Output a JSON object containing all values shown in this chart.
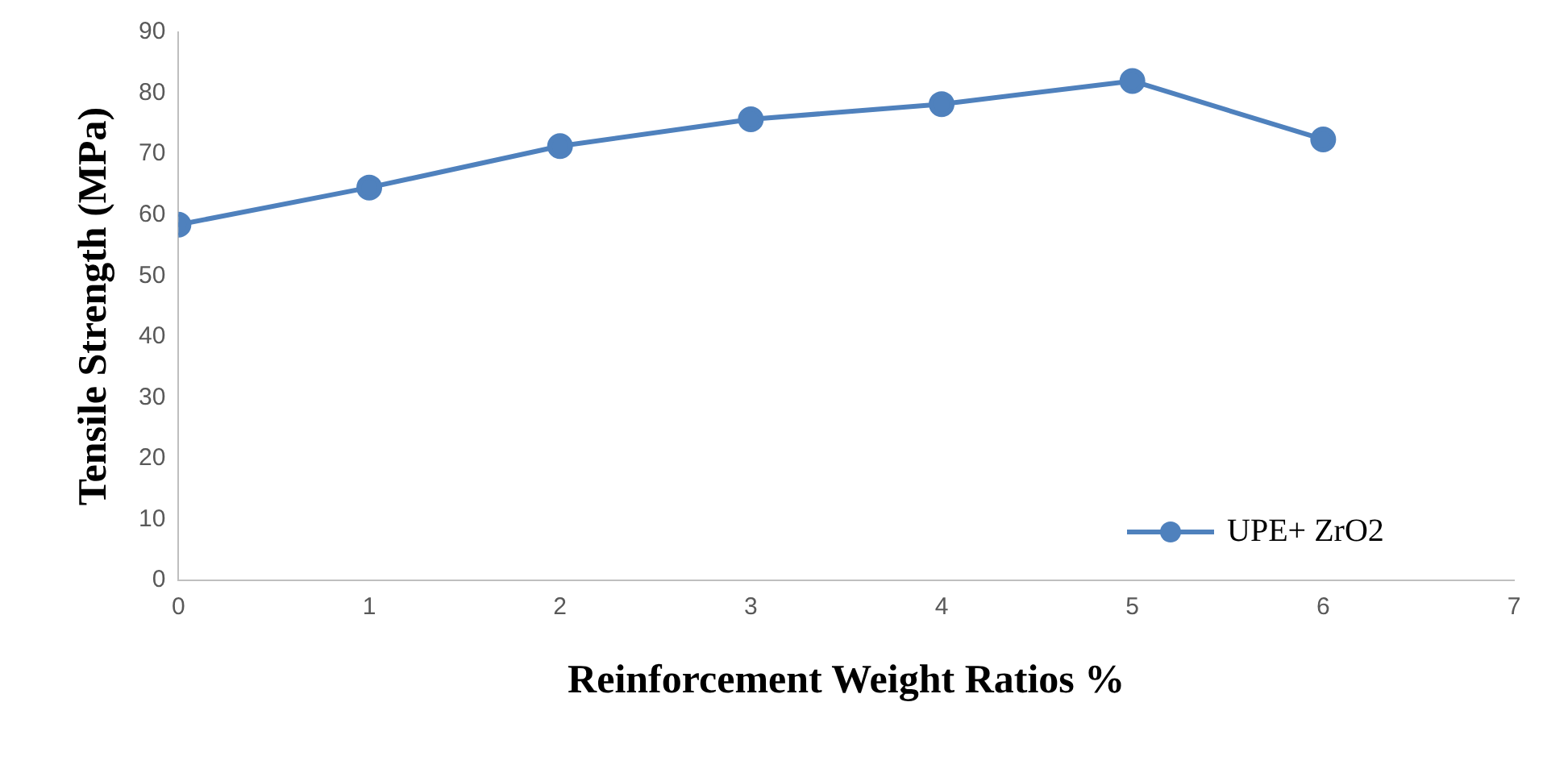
{
  "chart_data": {
    "type": "line",
    "xlabel": "Reinforcement Weight Ratios %",
    "ylabel": "Tensile Strength (MPa)",
    "x": [
      0,
      1,
      2,
      3,
      4,
      5,
      6
    ],
    "series": [
      {
        "name": "UPE+ ZrO2",
        "color": "#4f81bd",
        "values": [
          58.4,
          64.5,
          71.3,
          75.7,
          78.2,
          82.0,
          72.4
        ]
      }
    ],
    "xlim": [
      0,
      7
    ],
    "xticks": [
      0,
      1,
      2,
      3,
      4,
      5,
      6,
      7
    ],
    "ylim": [
      0,
      90
    ],
    "yticks": [
      0,
      10,
      20,
      30,
      40,
      50,
      60,
      70,
      80,
      90
    ],
    "grid": false,
    "legend": "bottom right",
    "marker": "circle",
    "line_style": "solid"
  }
}
